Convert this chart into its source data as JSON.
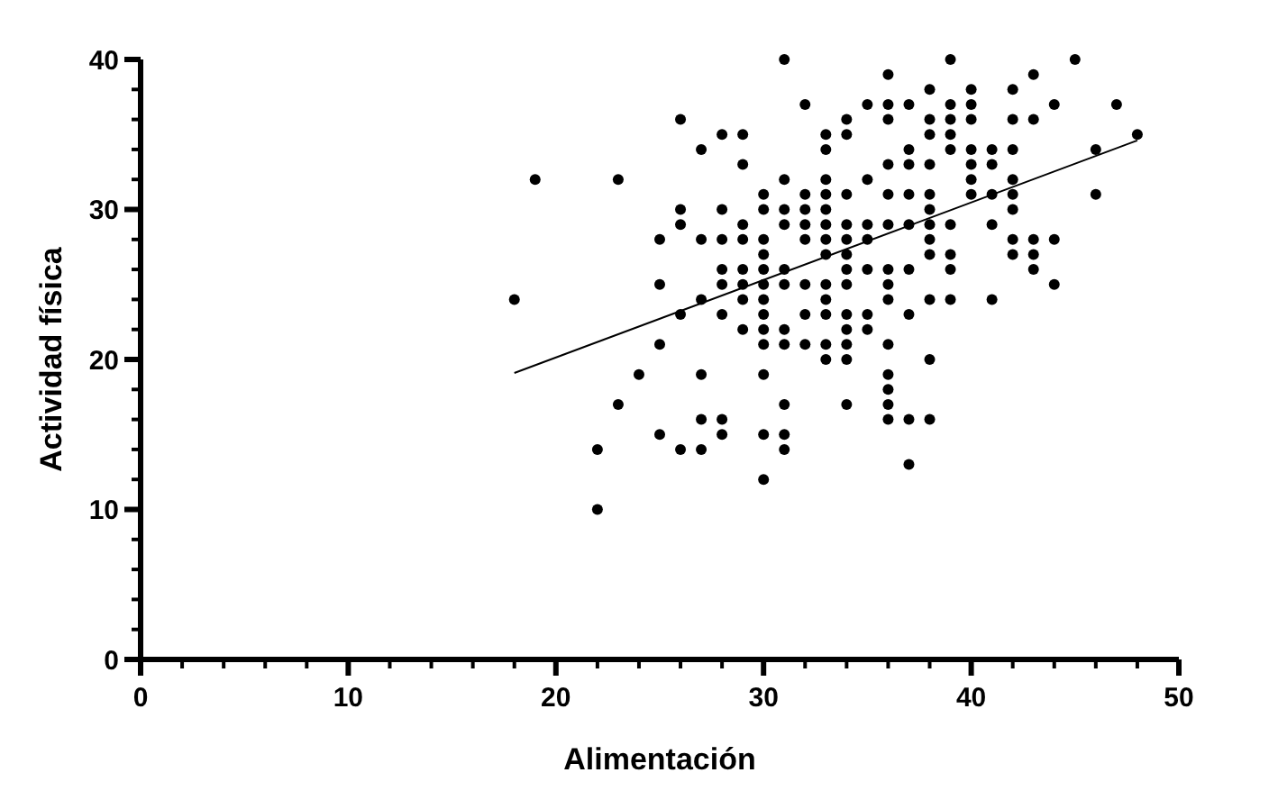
{
  "chart_data": {
    "type": "scatter",
    "xlabel": "Alimentación",
    "ylabel": "Actividad física",
    "xlim": [
      0,
      50
    ],
    "ylim": [
      0,
      40
    ],
    "xticks": [
      0,
      {
        "value": 2,
        "label": null
      },
      {
        "value": 4,
        "label": null
      },
      {
        "value": 6,
        "label": null
      },
      {
        "value": 8,
        "label": null
      },
      10,
      {
        "value": 12,
        "label": null
      },
      {
        "value": 14,
        "label": null
      },
      {
        "value": 16,
        "label": null
      },
      {
        "value": 18,
        "label": null
      },
      20,
      {
        "value": 22,
        "label": null
      },
      {
        "value": 24,
        "label": null
      },
      {
        "value": 26,
        "label": null
      },
      {
        "value": 28,
        "label": null
      },
      30,
      {
        "value": 32,
        "label": null
      },
      {
        "value": 34,
        "label": null
      },
      {
        "value": 36,
        "label": null
      },
      {
        "value": 38,
        "label": null
      },
      40,
      {
        "value": 42,
        "label": null
      },
      {
        "value": 44,
        "label": null
      },
      {
        "value": 46,
        "label": null
      },
      {
        "value": 48,
        "label": null
      },
      50
    ],
    "yticks": [
      0,
      {
        "value": 2,
        "label": null
      },
      {
        "value": 4,
        "label": null
      },
      {
        "value": 6,
        "label": null
      },
      {
        "value": 8,
        "label": null
      },
      10,
      {
        "value": 12,
        "label": null
      },
      {
        "value": 14,
        "label": null
      },
      {
        "value": 16,
        "label": null
      },
      {
        "value": 18,
        "label": null
      },
      20,
      {
        "value": 22,
        "label": null
      },
      {
        "value": 24,
        "label": null
      },
      {
        "value": 26,
        "label": null
      },
      {
        "value": 28,
        "label": null
      },
      30,
      {
        "value": 32,
        "label": null
      },
      {
        "value": 34,
        "label": null
      },
      {
        "value": 36,
        "label": null
      },
      {
        "value": 38,
        "label": null
      },
      40
    ],
    "grid": false,
    "marker": "circle",
    "series": [
      {
        "color": "#000000",
        "x": [
          26,
          28,
          27,
          19,
          23,
          26,
          28,
          26,
          25,
          27,
          28,
          28,
          25,
          28,
          18,
          27,
          26,
          28,
          25,
          24,
          27,
          23,
          27,
          28,
          25,
          28,
          22,
          26,
          27,
          22,
          31,
          39,
          36,
          38,
          32,
          35,
          36,
          37,
          39,
          34,
          36,
          38,
          39,
          29,
          33,
          34,
          38,
          39,
          33,
          37,
          39,
          29,
          36,
          37,
          38,
          31,
          33,
          35,
          30,
          32,
          33,
          34,
          36,
          37,
          38,
          30,
          31,
          32,
          33,
          38,
          29,
          31,
          32,
          33,
          34,
          35,
          36,
          37,
          38,
          39,
          29,
          30,
          32,
          33,
          34,
          35,
          38,
          30,
          33,
          34,
          38,
          39,
          29,
          30,
          31,
          34,
          35,
          36,
          37,
          39,
          29,
          30,
          31,
          32,
          33,
          34,
          36,
          29,
          30,
          33,
          36,
          38,
          39,
          30,
          32,
          33,
          34,
          35,
          37,
          29,
          30,
          31,
          34,
          35,
          30,
          31,
          32,
          33,
          34,
          36,
          33,
          34,
          38,
          30,
          36,
          36,
          31,
          34,
          36,
          36,
          37,
          38,
          30,
          31,
          31,
          37,
          30,
          45,
          43,
          40,
          42,
          40,
          44,
          47,
          40,
          42,
          43,
          48,
          40,
          41,
          42,
          46,
          40,
          41,
          40,
          42,
          40,
          41,
          42,
          46,
          42,
          41,
          42,
          43,
          44,
          42,
          43,
          43,
          44,
          41
        ],
        "values": [
          36,
          35,
          34,
          32,
          32,
          30,
          30,
          29,
          28,
          28,
          28,
          26,
          25,
          25,
          24,
          24,
          23,
          23,
          21,
          19,
          19,
          17,
          16,
          16,
          15,
          15,
          14,
          14,
          14,
          10,
          40,
          40,
          39,
          38,
          37,
          37,
          37,
          37,
          37,
          36,
          36,
          36,
          36,
          35,
          35,
          35,
          35,
          35,
          34,
          34,
          34,
          33,
          33,
          33,
          33,
          32,
          32,
          32,
          31,
          31,
          31,
          31,
          31,
          31,
          31,
          30,
          30,
          30,
          30,
          30,
          29,
          29,
          29,
          29,
          29,
          29,
          29,
          29,
          29,
          29,
          28,
          28,
          28,
          28,
          28,
          28,
          28,
          27,
          27,
          27,
          27,
          27,
          26,
          26,
          26,
          26,
          26,
          26,
          26,
          26,
          25,
          25,
          25,
          25,
          25,
          25,
          25,
          24,
          24,
          24,
          24,
          24,
          24,
          23,
          23,
          23,
          23,
          23,
          23,
          22,
          22,
          22,
          22,
          22,
          21,
          21,
          21,
          21,
          21,
          21,
          20,
          20,
          20,
          19,
          19,
          18,
          17,
          17,
          17,
          16,
          16,
          16,
          15,
          15,
          14,
          13,
          12,
          40,
          39,
          38,
          38,
          37,
          37,
          37,
          36,
          36,
          36,
          35,
          34,
          34,
          34,
          34,
          33,
          33,
          32,
          32,
          31,
          31,
          31,
          31,
          30,
          29,
          28,
          28,
          28,
          27,
          27,
          26,
          25,
          24
        ]
      },
      {
        "type": "line",
        "color": "#000000",
        "x": [
          18,
          48
        ],
        "values": [
          19.1,
          34.6
        ],
        "marker": "none"
      }
    ]
  }
}
